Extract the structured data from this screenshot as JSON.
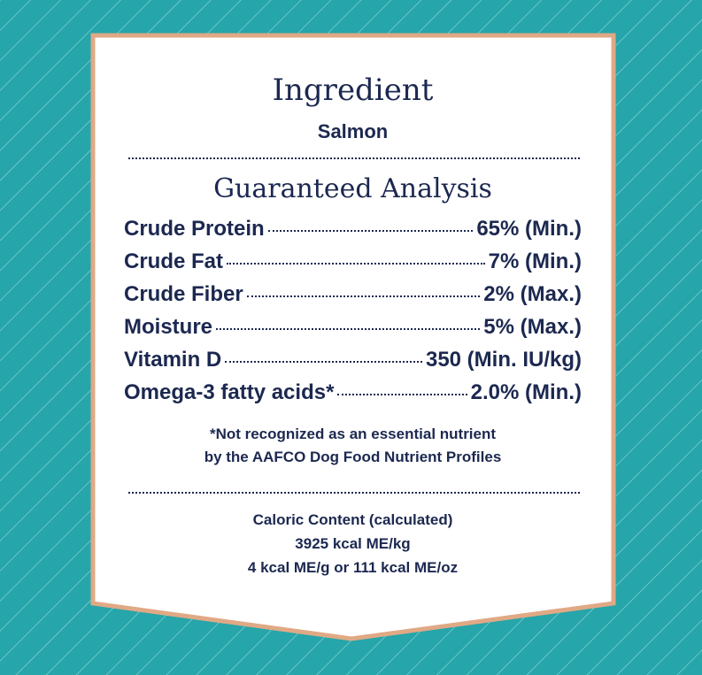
{
  "ingredient": {
    "title": "Ingredient",
    "name": "Salmon"
  },
  "analysis": {
    "title": "Guaranteed Analysis",
    "rows": [
      {
        "name": "Crude Protein",
        "value": "65% (Min.)"
      },
      {
        "name": "Crude Fat",
        "value": "7% (Min.)"
      },
      {
        "name": "Crude Fiber",
        "value": "2% (Max.)"
      },
      {
        "name": "Moisture",
        "value": "5% (Max.)"
      },
      {
        "name": "Vitamin D",
        "value": "350 (Min. IU/kg)"
      },
      {
        "name": "Omega-3 fatty acids*",
        "value": "2.0% (Min.)"
      }
    ],
    "footnote": [
      "*Not recognized as an essential nutrient",
      "by the AAFCO Dog Food Nutrient Profiles"
    ]
  },
  "caloric": {
    "lines": [
      "Caloric Content (calculated)",
      "3925 kcal ME/kg",
      "4 kcal ME/g or 111 kcal ME/oz"
    ]
  }
}
